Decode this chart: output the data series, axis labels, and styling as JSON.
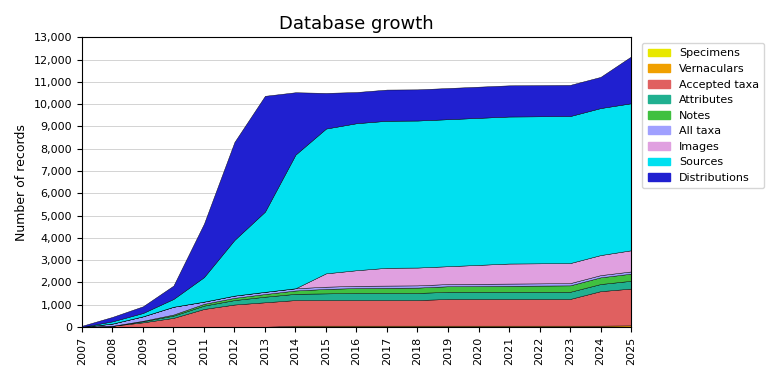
{
  "title": "Database growth",
  "ylabel": "Number of records",
  "ylim": [
    0,
    13000
  ],
  "yticks": [
    0,
    1000,
    2000,
    3000,
    4000,
    5000,
    6000,
    7000,
    8000,
    9000,
    10000,
    11000,
    12000,
    13000
  ],
  "ytick_labels": [
    "0",
    "1,000",
    "2,000",
    "3,000",
    "4,000",
    "5,000",
    "6,000",
    "7,000",
    "8,000",
    "9,000",
    "10,000",
    "11,000",
    "12,000",
    "13,000"
  ],
  "series": [
    {
      "name": "Specimens",
      "color": "#e8e800",
      "values_by_year": {
        "2007": 0,
        "2008": 0,
        "2009": 5,
        "2010": 5,
        "2011": 5,
        "2012": 5,
        "2013": 5,
        "2014": 5,
        "2015": 5,
        "2016": 5,
        "2017": 5,
        "2018": 5,
        "2019": 5,
        "2020": 5,
        "2021": 5,
        "2022": 5,
        "2023": 5,
        "2024": 5,
        "2025": 10
      }
    },
    {
      "name": "Vernaculars",
      "color": "#f0a000",
      "values_by_year": {
        "2007": 0,
        "2008": 0,
        "2009": 0,
        "2010": 0,
        "2011": 0,
        "2012": 0,
        "2013": 0,
        "2014": 50,
        "2015": 50,
        "2016": 50,
        "2017": 50,
        "2018": 50,
        "2019": 50,
        "2020": 50,
        "2021": 50,
        "2022": 50,
        "2023": 50,
        "2024": 50,
        "2025": 60
      }
    },
    {
      "name": "Accepted taxa",
      "color": "#e06060",
      "values_by_year": {
        "2007": 0,
        "2008": 50,
        "2009": 200,
        "2010": 400,
        "2011": 800,
        "2012": 1000,
        "2013": 1100,
        "2014": 1150,
        "2015": 1150,
        "2016": 1150,
        "2017": 1150,
        "2018": 1150,
        "2019": 1200,
        "2020": 1200,
        "2021": 1200,
        "2022": 1200,
        "2023": 1200,
        "2024": 1550,
        "2025": 1650
      }
    },
    {
      "name": "Attributes",
      "color": "#20b090",
      "values_by_year": {
        "2007": 0,
        "2008": 0,
        "2009": 50,
        "2010": 100,
        "2011": 150,
        "2012": 200,
        "2013": 250,
        "2014": 280,
        "2015": 300,
        "2016": 320,
        "2017": 320,
        "2018": 320,
        "2019": 320,
        "2020": 320,
        "2021": 320,
        "2022": 320,
        "2023": 320,
        "2024": 320,
        "2025": 350
      }
    },
    {
      "name": "Notes",
      "color": "#40c040",
      "values_by_year": {
        "2007": 0,
        "2008": 0,
        "2009": 20,
        "2010": 50,
        "2011": 80,
        "2012": 100,
        "2013": 120,
        "2014": 150,
        "2015": 200,
        "2016": 220,
        "2017": 230,
        "2018": 240,
        "2019": 250,
        "2020": 260,
        "2021": 270,
        "2022": 280,
        "2023": 290,
        "2024": 300,
        "2025": 320
      }
    },
    {
      "name": "All taxa",
      "color": "#a0a0ff",
      "values_by_year": {
        "2007": 0,
        "2008": 100,
        "2009": 200,
        "2010": 350,
        "2011": 100,
        "2012": 100,
        "2013": 100,
        "2014": 100,
        "2015": 100,
        "2016": 100,
        "2017": 100,
        "2018": 100,
        "2019": 100,
        "2020": 100,
        "2021": 100,
        "2022": 100,
        "2023": 100,
        "2024": 100,
        "2025": 100
      }
    },
    {
      "name": "Images",
      "color": "#e0a0e0",
      "values_by_year": {
        "2007": 0,
        "2008": 0,
        "2009": 0,
        "2010": 0,
        "2011": 0,
        "2012": 0,
        "2013": 0,
        "2014": 0,
        "2015": 600,
        "2016": 700,
        "2017": 800,
        "2018": 800,
        "2019": 800,
        "2020": 850,
        "2021": 900,
        "2022": 900,
        "2023": 900,
        "2024": 900,
        "2025": 950
      }
    },
    {
      "name": "Sources",
      "color": "#00e0f0",
      "values_by_year": {
        "2007": 0,
        "2008": 100,
        "2009": 150,
        "2010": 350,
        "2011": 1100,
        "2012": 2500,
        "2013": 3600,
        "2014": 6000,
        "2015": 6500,
        "2016": 6600,
        "2017": 6600,
        "2018": 6600,
        "2019": 6600,
        "2020": 6600,
        "2021": 6600,
        "2022": 6600,
        "2023": 6600,
        "2024": 6600,
        "2025": 6600
      }
    },
    {
      "name": "Distributions",
      "color": "#2020d0",
      "values_by_year": {
        "2007": 50,
        "2008": 200,
        "2009": 300,
        "2010": 600,
        "2011": 2400,
        "2012": 4400,
        "2013": 5200,
        "2014": 2800,
        "2015": 1600,
        "2016": 1400,
        "2017": 1400,
        "2018": 1400,
        "2019": 1400,
        "2020": 1400,
        "2021": 1400,
        "2022": 1400,
        "2023": 1400,
        "2024": 1400,
        "2025": 2100
      }
    }
  ],
  "years": [
    "2007",
    "2008",
    "2009",
    "2010",
    "2011",
    "2012",
    "2013",
    "2014",
    "2015",
    "2016",
    "2017",
    "2018",
    "2019",
    "2020",
    "2021",
    "2022",
    "2023",
    "2024",
    "2025"
  ]
}
